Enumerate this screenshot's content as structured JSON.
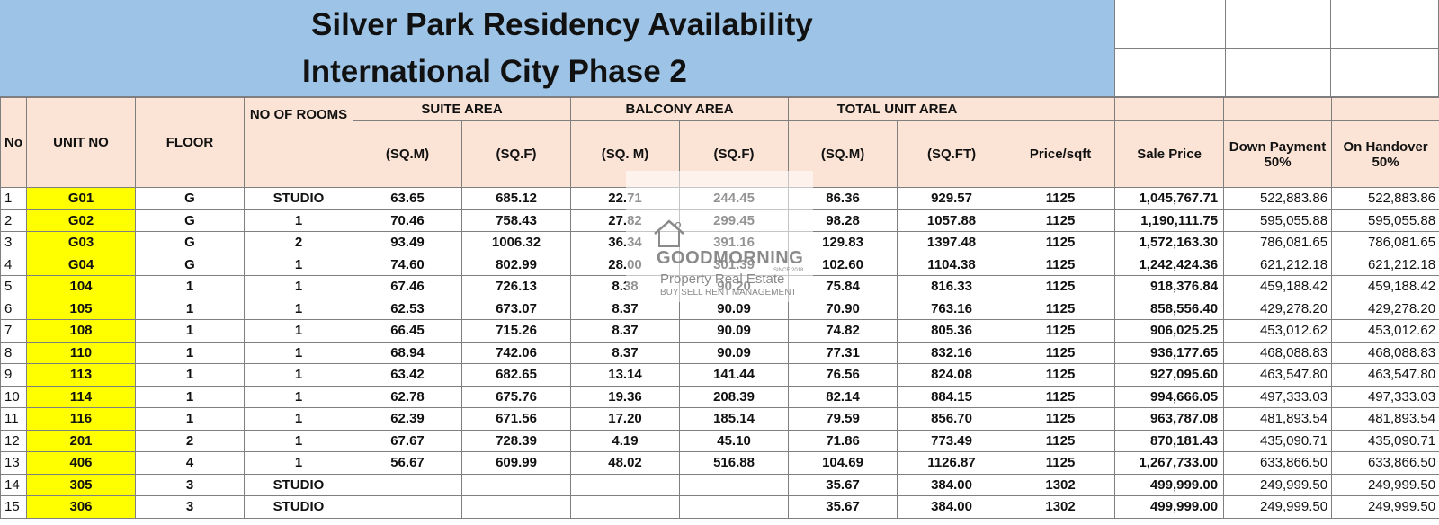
{
  "title": {
    "line1": "Silver Park Residency Availability",
    "line2": "International City Phase 2"
  },
  "header": {
    "no": "No",
    "unit_no": "UNIT NO",
    "floor": "FLOOR",
    "rooms": "NO OF ROOMS",
    "suite_area": "SUITE AREA",
    "balcony_area": "BALCONY AREA",
    "total_unit_area": "TOTAL UNIT AREA",
    "suite_sqm": "(SQ.M)",
    "suite_sqf": "(SQ.F)",
    "balcony_sqm": "(SQ. M)",
    "balcony_sqf": "(SQ.F)",
    "total_sqm": "(SQ.M)",
    "total_sqft": "(SQ.FT)",
    "price_sqft": "Price/sqft",
    "sale_price": "Sale Price",
    "down_payment": "Down Payment 50%",
    "on_handover": "On Handover 50%"
  },
  "rows": [
    {
      "no": "1",
      "unit": "G01",
      "floor": "G",
      "rooms": "STUDIO",
      "suite_sqm": "63.65",
      "suite_sqf": "685.12",
      "balcony_sqm": "22.71",
      "balcony_sqf": "244.45",
      "total_sqm": "86.36",
      "total_sqft": "929.57",
      "price_sqft": "1125",
      "sale_price": "1,045,767.71",
      "down_payment": "522,883.86",
      "on_handover": "522,883.86"
    },
    {
      "no": "2",
      "unit": "G02",
      "floor": "G",
      "rooms": "1",
      "suite_sqm": "70.46",
      "suite_sqf": "758.43",
      "balcony_sqm": "27.82",
      "balcony_sqf": "299.45",
      "total_sqm": "98.28",
      "total_sqft": "1057.88",
      "price_sqft": "1125",
      "sale_price": "1,190,111.75",
      "down_payment": "595,055.88",
      "on_handover": "595,055.88"
    },
    {
      "no": "3",
      "unit": "G03",
      "floor": "G",
      "rooms": "2",
      "suite_sqm": "93.49",
      "suite_sqf": "1006.32",
      "balcony_sqm": "36.34",
      "balcony_sqf": "391.16",
      "total_sqm": "129.83",
      "total_sqft": "1397.48",
      "price_sqft": "1125",
      "sale_price": "1,572,163.30",
      "down_payment": "786,081.65",
      "on_handover": "786,081.65"
    },
    {
      "no": "4",
      "unit": "G04",
      "floor": "G",
      "rooms": "1",
      "suite_sqm": "74.60",
      "suite_sqf": "802.99",
      "balcony_sqm": "28.00",
      "balcony_sqf": "301.39",
      "total_sqm": "102.60",
      "total_sqft": "1104.38",
      "price_sqft": "1125",
      "sale_price": "1,242,424.36",
      "down_payment": "621,212.18",
      "on_handover": "621,212.18"
    },
    {
      "no": "5",
      "unit": "104",
      "floor": "1",
      "rooms": "1",
      "suite_sqm": "67.46",
      "suite_sqf": "726.13",
      "balcony_sqm": "8.38",
      "balcony_sqf": "90.20",
      "total_sqm": "75.84",
      "total_sqft": "816.33",
      "price_sqft": "1125",
      "sale_price": "918,376.84",
      "down_payment": "459,188.42",
      "on_handover": "459,188.42"
    },
    {
      "no": "6",
      "unit": "105",
      "floor": "1",
      "rooms": "1",
      "suite_sqm": "62.53",
      "suite_sqf": "673.07",
      "balcony_sqm": "8.37",
      "balcony_sqf": "90.09",
      "total_sqm": "70.90",
      "total_sqft": "763.16",
      "price_sqft": "1125",
      "sale_price": "858,556.40",
      "down_payment": "429,278.20",
      "on_handover": "429,278.20"
    },
    {
      "no": "7",
      "unit": "108",
      "floor": "1",
      "rooms": "1",
      "suite_sqm": "66.45",
      "suite_sqf": "715.26",
      "balcony_sqm": "8.37",
      "balcony_sqf": "90.09",
      "total_sqm": "74.82",
      "total_sqft": "805.36",
      "price_sqft": "1125",
      "sale_price": "906,025.25",
      "down_payment": "453,012.62",
      "on_handover": "453,012.62"
    },
    {
      "no": "8",
      "unit": "110",
      "floor": "1",
      "rooms": "1",
      "suite_sqm": "68.94",
      "suite_sqf": "742.06",
      "balcony_sqm": "8.37",
      "balcony_sqf": "90.09",
      "total_sqm": "77.31",
      "total_sqft": "832.16",
      "price_sqft": "1125",
      "sale_price": "936,177.65",
      "down_payment": "468,088.83",
      "on_handover": "468,088.83"
    },
    {
      "no": "9",
      "unit": "113",
      "floor": "1",
      "rooms": "1",
      "suite_sqm": "63.42",
      "suite_sqf": "682.65",
      "balcony_sqm": "13.14",
      "balcony_sqf": "141.44",
      "total_sqm": "76.56",
      "total_sqft": "824.08",
      "price_sqft": "1125",
      "sale_price": "927,095.60",
      "down_payment": "463,547.80",
      "on_handover": "463,547.80"
    },
    {
      "no": "10",
      "unit": "114",
      "floor": "1",
      "rooms": "1",
      "suite_sqm": "62.78",
      "suite_sqf": "675.76",
      "balcony_sqm": "19.36",
      "balcony_sqf": "208.39",
      "total_sqm": "82.14",
      "total_sqft": "884.15",
      "price_sqft": "1125",
      "sale_price": "994,666.05",
      "down_payment": "497,333.03",
      "on_handover": "497,333.03"
    },
    {
      "no": "11",
      "unit": "116",
      "floor": "1",
      "rooms": "1",
      "suite_sqm": "62.39",
      "suite_sqf": "671.56",
      "balcony_sqm": "17.20",
      "balcony_sqf": "185.14",
      "total_sqm": "79.59",
      "total_sqft": "856.70",
      "price_sqft": "1125",
      "sale_price": "963,787.08",
      "down_payment": "481,893.54",
      "on_handover": "481,893.54"
    },
    {
      "no": "12",
      "unit": "201",
      "floor": "2",
      "rooms": "1",
      "suite_sqm": "67.67",
      "suite_sqf": "728.39",
      "balcony_sqm": "4.19",
      "balcony_sqf": "45.10",
      "total_sqm": "71.86",
      "total_sqft": "773.49",
      "price_sqft": "1125",
      "sale_price": "870,181.43",
      "down_payment": "435,090.71",
      "on_handover": "435,090.71"
    },
    {
      "no": "13",
      "unit": "406",
      "floor": "4",
      "rooms": "1",
      "suite_sqm": "56.67",
      "suite_sqf": "609.99",
      "balcony_sqm": "48.02",
      "balcony_sqf": "516.88",
      "total_sqm": "104.69",
      "total_sqft": "1126.87",
      "price_sqft": "1125",
      "sale_price": "1,267,733.00",
      "down_payment": "633,866.50",
      "on_handover": "633,866.50"
    },
    {
      "no": "14",
      "unit": "305",
      "floor": "3",
      "rooms": "STUDIO",
      "suite_sqm": "",
      "suite_sqf": "",
      "balcony_sqm": "",
      "balcony_sqf": "",
      "total_sqm": "35.67",
      "total_sqft": "384.00",
      "price_sqft": "1302",
      "sale_price": "499,999.00",
      "down_payment": "249,999.50",
      "on_handover": "249,999.50"
    },
    {
      "no": "15",
      "unit": "306",
      "floor": "3",
      "rooms": "STUDIO",
      "suite_sqm": "",
      "suite_sqf": "",
      "balcony_sqm": "",
      "balcony_sqf": "",
      "total_sqm": "35.67",
      "total_sqft": "384.00",
      "price_sqft": "1302",
      "sale_price": "499,999.00",
      "down_payment": "249,999.50",
      "on_handover": "249,999.50"
    }
  ],
  "watermark": {
    "name": "GOODMORNING",
    "since": "SINCE 2018",
    "line2": "Property Real Estate",
    "line3": "BUY SELL RENT MANAGEMENT"
  },
  "colors": {
    "title_bg": "#9dc3e6",
    "header_bg": "#fbe4d6",
    "unit_highlight": "#ffff00"
  }
}
